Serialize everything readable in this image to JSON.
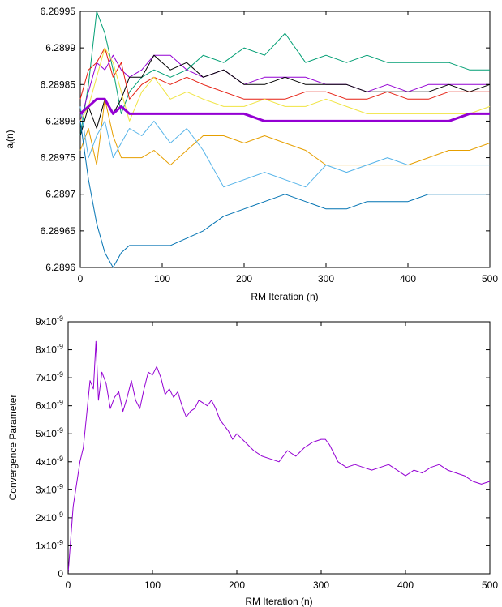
{
  "chart_data": [
    {
      "type": "line",
      "title": "",
      "xlabel": "RM Iteration (n)",
      "ylabel": "a_i(n)",
      "ylabel_main": "a",
      "ylabel_sub": "i",
      "ylabel_rest": "(n)",
      "xlim": [
        0,
        500
      ],
      "ylim": [
        6.2896,
        6.28995
      ],
      "xticks": [
        0,
        100,
        200,
        300,
        400,
        500
      ],
      "xtick_labels": [
        "0",
        "100",
        "200",
        "300",
        "400",
        "500"
      ],
      "yticks": [
        6.2896,
        6.28965,
        6.2897,
        6.28975,
        6.2898,
        6.28985,
        6.2899,
        6.28995
      ],
      "ytick_labels": [
        "6.2896",
        "6.28965",
        "6.2897",
        "6.28975",
        "6.2898",
        "6.28985",
        "6.2899",
        "6.28995"
      ],
      "grid": false,
      "series": [
        {
          "color": "#009e73",
          "width": 1,
          "x": [
            0,
            10,
            20,
            30,
            40,
            50,
            60,
            75,
            90,
            110,
            130,
            150,
            175,
            200,
            225,
            250,
            275,
            300,
            325,
            350,
            375,
            400,
            425,
            450,
            475,
            500
          ],
          "values": [
            6.28978,
            6.28985,
            6.28995,
            6.28992,
            6.28987,
            6.28981,
            6.28984,
            6.28986,
            6.28987,
            6.28986,
            6.28987,
            6.28989,
            6.28988,
            6.2899,
            6.28989,
            6.28992,
            6.28988,
            6.28989,
            6.28988,
            6.28989,
            6.28988,
            6.28988,
            6.28988,
            6.28988,
            6.28987,
            6.28987
          ]
        },
        {
          "color": "#9400d3",
          "width": 1,
          "x": [
            0,
            10,
            20,
            30,
            40,
            50,
            60,
            75,
            90,
            110,
            130,
            150,
            175,
            200,
            225,
            250,
            275,
            300,
            325,
            350,
            375,
            400,
            425,
            450,
            475,
            500
          ],
          "values": [
            6.2898,
            6.28984,
            6.28988,
            6.28987,
            6.28989,
            6.28987,
            6.28986,
            6.28987,
            6.28989,
            6.28989,
            6.28987,
            6.28986,
            6.28987,
            6.28985,
            6.28986,
            6.28986,
            6.28986,
            6.28985,
            6.28985,
            6.28984,
            6.28985,
            6.28984,
            6.28985,
            6.28985,
            6.28985,
            6.28985
          ]
        },
        {
          "color": "#000000",
          "width": 1,
          "x": [
            0,
            10,
            20,
            30,
            40,
            50,
            60,
            75,
            90,
            110,
            130,
            150,
            175,
            200,
            225,
            250,
            275,
            300,
            325,
            350,
            375,
            400,
            425,
            450,
            475,
            500
          ],
          "values": [
            6.28978,
            6.28982,
            6.28979,
            6.28983,
            6.28981,
            6.28983,
            6.28986,
            6.28986,
            6.28989,
            6.28987,
            6.28988,
            6.28986,
            6.28987,
            6.28985,
            6.28985,
            6.28986,
            6.28985,
            6.28985,
            6.28985,
            6.28984,
            6.28984,
            6.28984,
            6.28984,
            6.28985,
            6.28984,
            6.28985
          ]
        },
        {
          "color": "#e51e10",
          "width": 1,
          "x": [
            0,
            10,
            20,
            30,
            40,
            50,
            60,
            75,
            90,
            110,
            130,
            150,
            175,
            200,
            225,
            250,
            275,
            300,
            325,
            350,
            375,
            400,
            425,
            450,
            475,
            500
          ],
          "values": [
            6.28983,
            6.28987,
            6.28988,
            6.2899,
            6.28986,
            6.28988,
            6.28983,
            6.28985,
            6.28986,
            6.28985,
            6.28986,
            6.28985,
            6.28984,
            6.28983,
            6.28983,
            6.28983,
            6.28984,
            6.28984,
            6.28983,
            6.28983,
            6.28984,
            6.28983,
            6.28983,
            6.28984,
            6.28984,
            6.28984
          ]
        },
        {
          "color": "#f0e442",
          "width": 1,
          "x": [
            0,
            10,
            20,
            30,
            40,
            50,
            60,
            75,
            90,
            110,
            130,
            150,
            175,
            200,
            225,
            250,
            275,
            300,
            325,
            350,
            375,
            400,
            425,
            450,
            475,
            500
          ],
          "values": [
            6.2898,
            6.28982,
            6.28986,
            6.2899,
            6.28988,
            6.28984,
            6.2898,
            6.28984,
            6.28986,
            6.28983,
            6.28984,
            6.28983,
            6.28982,
            6.28982,
            6.28983,
            6.28982,
            6.28982,
            6.28983,
            6.28982,
            6.28981,
            6.28981,
            6.28981,
            6.28981,
            6.28981,
            6.28981,
            6.28982
          ]
        },
        {
          "color": "#e69f00",
          "width": 1,
          "x": [
            0,
            10,
            20,
            30,
            40,
            50,
            60,
            75,
            90,
            110,
            130,
            150,
            175,
            200,
            225,
            250,
            275,
            300,
            325,
            350,
            375,
            400,
            425,
            450,
            475,
            500
          ],
          "values": [
            6.28976,
            6.28979,
            6.28974,
            6.28983,
            6.28978,
            6.28975,
            6.28975,
            6.28975,
            6.28976,
            6.28974,
            6.28976,
            6.28978,
            6.28978,
            6.28977,
            6.28978,
            6.28977,
            6.28976,
            6.28974,
            6.28974,
            6.28974,
            6.28974,
            6.28974,
            6.28975,
            6.28976,
            6.28976,
            6.28977
          ]
        },
        {
          "color": "#56b4e9",
          "width": 1,
          "x": [
            0,
            10,
            20,
            30,
            40,
            50,
            60,
            75,
            90,
            110,
            130,
            150,
            175,
            200,
            225,
            250,
            275,
            300,
            325,
            350,
            375,
            400,
            425,
            450,
            475,
            500
          ],
          "values": [
            6.28982,
            6.28975,
            6.28978,
            6.2898,
            6.28975,
            6.28977,
            6.28979,
            6.28978,
            6.2898,
            6.28977,
            6.28979,
            6.28976,
            6.28971,
            6.28972,
            6.28973,
            6.28972,
            6.28971,
            6.28974,
            6.28973,
            6.28974,
            6.28975,
            6.28974,
            6.28974,
            6.28974,
            6.28974,
            6.28974
          ]
        },
        {
          "color": "#0072b2",
          "width": 1,
          "x": [
            0,
            10,
            20,
            30,
            40,
            50,
            60,
            75,
            90,
            110,
            130,
            150,
            175,
            200,
            225,
            250,
            275,
            300,
            325,
            350,
            375,
            400,
            425,
            450,
            475,
            500
          ],
          "values": [
            6.2898,
            6.28972,
            6.28966,
            6.28962,
            6.2896,
            6.28962,
            6.28963,
            6.28963,
            6.28963,
            6.28963,
            6.28964,
            6.28965,
            6.28967,
            6.28968,
            6.28969,
            6.2897,
            6.28969,
            6.28968,
            6.28968,
            6.28969,
            6.28969,
            6.28969,
            6.2897,
            6.2897,
            6.2897,
            6.2897
          ]
        },
        {
          "color": "#9400d3",
          "width": 3,
          "x": [
            0,
            10,
            20,
            30,
            40,
            50,
            60,
            75,
            90,
            110,
            130,
            150,
            175,
            200,
            225,
            250,
            275,
            300,
            325,
            350,
            375,
            400,
            425,
            450,
            475,
            500
          ],
          "values": [
            6.28981,
            6.28982,
            6.28983,
            6.28983,
            6.28981,
            6.28982,
            6.28981,
            6.28981,
            6.28981,
            6.28981,
            6.28981,
            6.28981,
            6.28981,
            6.28981,
            6.2898,
            6.2898,
            6.2898,
            6.2898,
            6.2898,
            6.2898,
            6.2898,
            6.2898,
            6.2898,
            6.2898,
            6.28981,
            6.28981
          ]
        }
      ]
    },
    {
      "type": "line",
      "title": "",
      "xlabel": "RM Iteration (n)",
      "ylabel": "Convergence Parameter",
      "xlim": [
        0,
        500
      ],
      "ylim": [
        0,
        9e-09
      ],
      "xticks": [
        0,
        100,
        200,
        300,
        400,
        500
      ],
      "xtick_labels": [
        "0",
        "100",
        "200",
        "300",
        "400",
        "500"
      ],
      "yticks": [
        0,
        1e-09,
        2e-09,
        3e-09,
        4e-09,
        5e-09,
        6e-09,
        7e-09,
        8e-09,
        9e-09
      ],
      "ytick_labels": [
        {
          "mant": "0",
          "exp": ""
        },
        {
          "mant": "1x10",
          "exp": "-9"
        },
        {
          "mant": "2x10",
          "exp": "-9"
        },
        {
          "mant": "3x10",
          "exp": "-9"
        },
        {
          "mant": "4x10",
          "exp": "-9"
        },
        {
          "mant": "5x10",
          "exp": "-9"
        },
        {
          "mant": "6x10",
          "exp": "-9"
        },
        {
          "mant": "7x10",
          "exp": "-9"
        },
        {
          "mant": "8x10",
          "exp": "-9"
        },
        {
          "mant": "9x10",
          "exp": "-9"
        }
      ],
      "grid": false,
      "series": [
        {
          "color": "#9400d3",
          "width": 1,
          "x": [
            0,
            3,
            6,
            10,
            14,
            18,
            22,
            26,
            30,
            33,
            36,
            40,
            45,
            50,
            55,
            60,
            65,
            70,
            75,
            80,
            85,
            90,
            95,
            100,
            105,
            110,
            115,
            120,
            125,
            130,
            135,
            140,
            145,
            150,
            155,
            160,
            165,
            170,
            175,
            180,
            185,
            190,
            195,
            200,
            210,
            220,
            230,
            240,
            250,
            260,
            270,
            280,
            290,
            300,
            305,
            310,
            315,
            320,
            330,
            340,
            350,
            360,
            370,
            380,
            390,
            400,
            410,
            420,
            430,
            440,
            450,
            460,
            470,
            480,
            490,
            500
          ],
          "values": [
            0,
            1.2e-09,
            2.4e-09,
            3.2e-09,
            4e-09,
            4.5e-09,
            5.7e-09,
            6.9e-09,
            6.6e-09,
            8.3e-09,
            6.2e-09,
            7.2e-09,
            6.8e-09,
            5.9e-09,
            6.3e-09,
            6.5e-09,
            5.8e-09,
            6.3e-09,
            6.9e-09,
            6.2e-09,
            5.9e-09,
            6.6e-09,
            7.2e-09,
            7.1e-09,
            7.4e-09,
            7e-09,
            6.4e-09,
            6.6e-09,
            6.3e-09,
            6.5e-09,
            6e-09,
            5.6e-09,
            5.8e-09,
            5.9e-09,
            6.2e-09,
            6.1e-09,
            6e-09,
            6.2e-09,
            5.9e-09,
            5.5e-09,
            5.3e-09,
            5.1e-09,
            4.8e-09,
            5e-09,
            4.7e-09,
            4.4e-09,
            4.2e-09,
            4.1e-09,
            4e-09,
            4.4e-09,
            4.2e-09,
            4.5e-09,
            4.7e-09,
            4.8e-09,
            4.8e-09,
            4.6e-09,
            4.3e-09,
            4e-09,
            3.8e-09,
            3.9e-09,
            3.8e-09,
            3.7e-09,
            3.8e-09,
            3.9e-09,
            3.7e-09,
            3.5e-09,
            3.7e-09,
            3.6e-09,
            3.8e-09,
            3.9e-09,
            3.7e-09,
            3.6e-09,
            3.5e-09,
            3.3e-09,
            3.2e-09,
            3.3e-09
          ]
        }
      ]
    }
  ]
}
